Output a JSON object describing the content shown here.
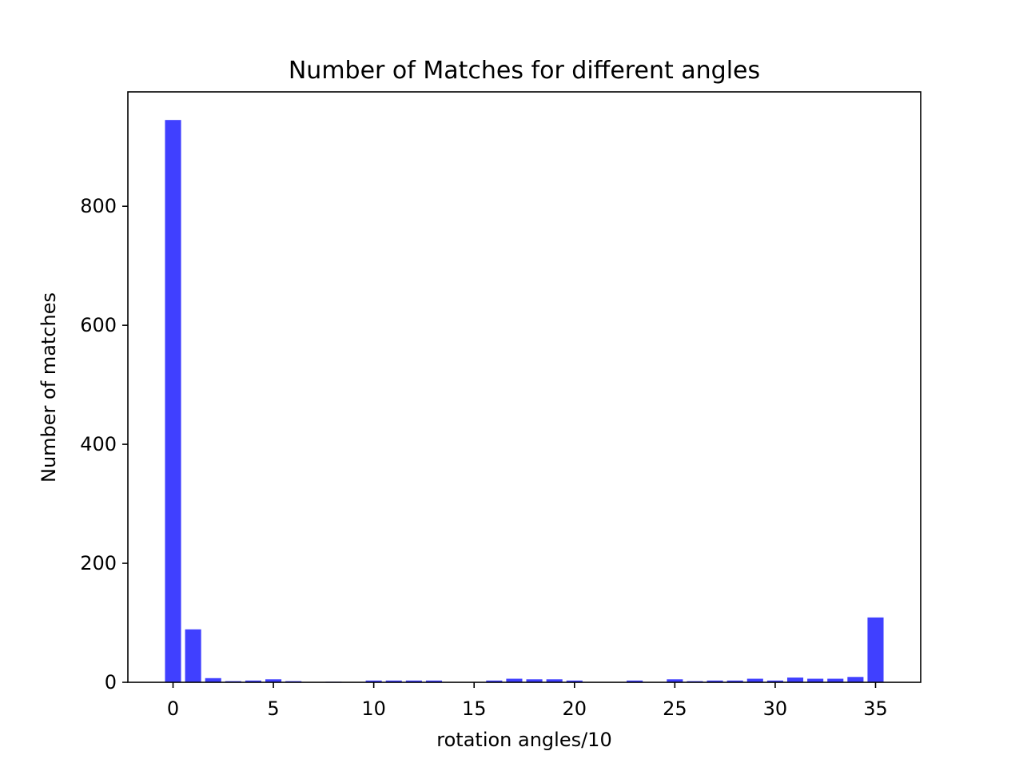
{
  "chart_data": {
    "type": "bar",
    "title": "Number of Matches for different angles",
    "xlabel": "rotation angles/10",
    "ylabel": "Number of matches",
    "x": [
      0,
      1,
      2,
      3,
      4,
      5,
      6,
      7,
      8,
      9,
      10,
      11,
      12,
      13,
      14,
      15,
      16,
      17,
      18,
      19,
      20,
      21,
      22,
      23,
      24,
      25,
      26,
      27,
      28,
      29,
      30,
      31,
      32,
      33,
      34,
      35
    ],
    "values": [
      945,
      89,
      7,
      2,
      3,
      5,
      2,
      0,
      1,
      0,
      3,
      3,
      3,
      3,
      0,
      0,
      3,
      6,
      5,
      5,
      3,
      0,
      0,
      3,
      0,
      5,
      2,
      3,
      3,
      6,
      3,
      8,
      6,
      6,
      9,
      109
    ],
    "xlim": [
      -2.25,
      37.25
    ],
    "ylim": [
      0,
      992.25
    ],
    "xticks": [
      0,
      5,
      10,
      15,
      20,
      25,
      30,
      35
    ],
    "yticks": [
      0,
      200,
      400,
      600,
      800
    ],
    "bar_color": "#4040ff",
    "grid": false
  }
}
